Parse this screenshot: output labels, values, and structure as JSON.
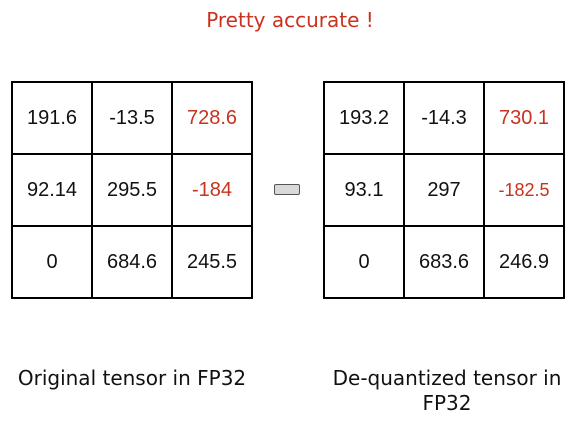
{
  "title": "Pretty accurate !",
  "colors": {
    "accent": "#c8321e",
    "text": "#111111",
    "border": "#000000",
    "approx_symbol_fill": "#d9d9d9"
  },
  "approx_symbol": "approximately-equal-icon",
  "original": {
    "caption": "Original tensor in FP32",
    "rows": [
      [
        "191.6",
        "-13.5",
        "728.6"
      ],
      [
        "92.14",
        "295.5",
        "-184"
      ],
      [
        "0",
        "684.6",
        "245.5"
      ]
    ]
  },
  "dequantized": {
    "caption": "De-quantized tensor in FP32",
    "rows": [
      [
        "193.2",
        "-14.3",
        "730.1"
      ],
      [
        "93.1",
        "297",
        "-182.5"
      ],
      [
        "0",
        "683.6",
        "246.9"
      ]
    ]
  }
}
